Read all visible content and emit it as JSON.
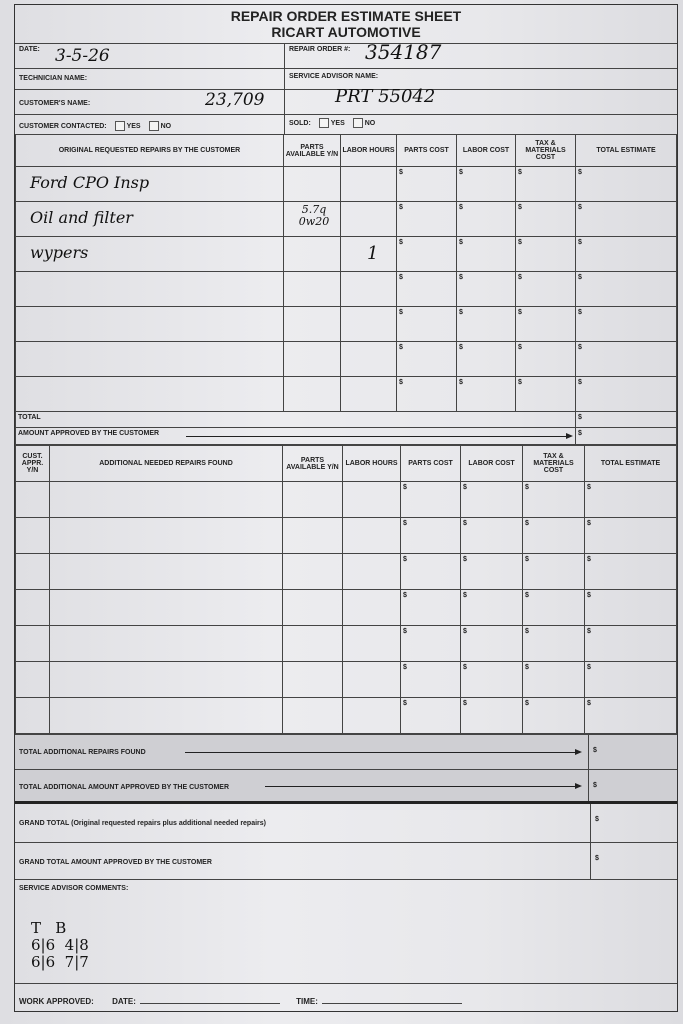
{
  "header": {
    "title": "REPAIR ORDER ESTIMATE SHEET",
    "company": "RICART AUTOMOTIVE"
  },
  "info": {
    "date_label": "DATE:",
    "date_value": "3-5-26",
    "repair_order_label": "REPAIR ORDER #:",
    "repair_order_value": "354187",
    "technician_label": "TECHNICIAN NAME:",
    "service_advisor_label": "SERVICE ADVISOR NAME:",
    "customer_label": "CUSTOMER'S NAME:",
    "customer_value": "23,709",
    "advisor_value": "PRT 55042",
    "contacted_label": "CUSTOMER CONTACTED:",
    "sold_label": "SOLD:",
    "yes": "YES",
    "no": "NO"
  },
  "original": {
    "headers": [
      "ORIGINAL REQUESTED REPAIRS BY THE CUSTOMER",
      "PARTS AVAILABLE Y/N",
      "LABOR HOURS",
      "PARTS COST",
      "LABOR COST",
      "TAX & MATERIALS COST",
      "TOTAL ESTIMATE"
    ],
    "rows": [
      {
        "desc": "Ford CPO Insp",
        "parts": "",
        "labor": ""
      },
      {
        "desc": "Oil and filter",
        "parts": "5.7q 0w20",
        "labor": ""
      },
      {
        "desc": "wypers",
        "parts": "",
        "labor": "1"
      },
      {
        "desc": "",
        "parts": "",
        "labor": ""
      },
      {
        "desc": "",
        "parts": "",
        "labor": ""
      },
      {
        "desc": "",
        "parts": "",
        "labor": ""
      },
      {
        "desc": "",
        "parts": "",
        "labor": ""
      }
    ],
    "currency": "$",
    "total_label": "TOTAL",
    "approved_label": "AMOUNT APPROVED BY THE CUSTOMER"
  },
  "additional": {
    "headers": [
      "CUST. APPR. Y/N",
      "ADDITIONAL NEEDED REPAIRS FOUND",
      "PARTS AVAILABLE Y/N",
      "LABOR HOURS",
      "PARTS COST",
      "LABOR COST",
      "TAX & MATERIALS COST",
      "TOTAL ESTIMATE"
    ],
    "row_count": 7,
    "total_found_label": "TOTAL ADDITIONAL REPAIRS FOUND",
    "total_approved_label": "TOTAL ADDITIONAL AMOUNT APPROVED BY THE CUSTOMER"
  },
  "grand": {
    "grand_total_label": "GRAND TOTAL (Original requested repairs plus additional needed repairs)",
    "grand_approved_label": "GRAND TOTAL AMOUNT APPROVED BY THE CUSTOMER"
  },
  "comments": {
    "label": "SERVICE ADVISOR COMMENTS:",
    "note_header": "T   B",
    "note_line1": "6|6  4|8",
    "note_line2": "6|6  7|7"
  },
  "footer": {
    "work_approved_label": "WORK APPROVED:",
    "date_label": "DATE:",
    "time_label": "TIME:"
  }
}
